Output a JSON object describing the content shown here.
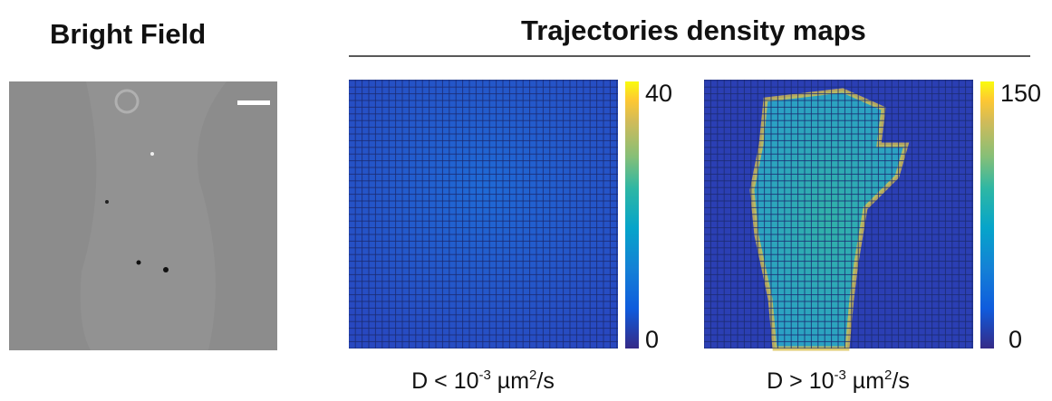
{
  "left_title": "Bright Field",
  "right_title": "Trajectories density maps",
  "maps": [
    {
      "colorbar_max": 40,
      "colorbar_min": 0,
      "caption": {
        "prefix": "D < 10",
        "exp": "-3",
        "unit": " µm",
        "unit_exp": "2",
        "suffix": "/s"
      }
    },
    {
      "colorbar_max": 150,
      "colorbar_min": 0,
      "caption": {
        "prefix": "D > 10",
        "exp": "-3",
        "unit": " µm",
        "unit_exp": "2",
        "suffix": "/s"
      }
    }
  ]
}
